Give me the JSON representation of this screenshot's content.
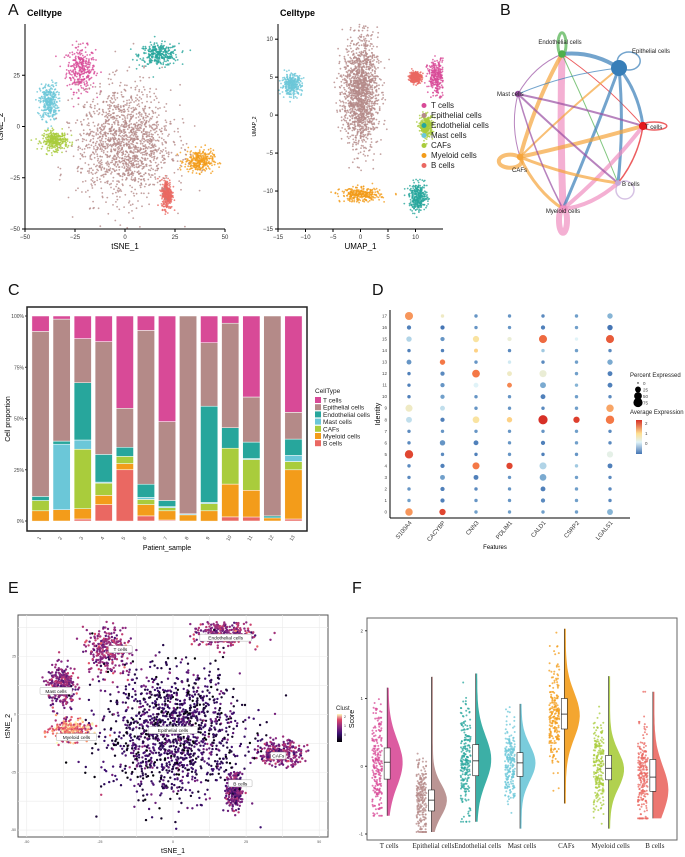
{
  "figure": {
    "panels": [
      "A",
      "B",
      "C",
      "D",
      "E",
      "F"
    ]
  },
  "celltypes": [
    "T cells",
    "Epithelial cells",
    "Endothelial cells",
    "Mast cells",
    "CAFs",
    "Myeloid cells",
    "B cells"
  ],
  "palette": {
    "T cells": "#d84a97",
    "Epithelial cells": "#b48a88",
    "Endothelial cells": "#27a69c",
    "Mast cells": "#6bc7d8",
    "CAFs": "#a9cc3c",
    "Myeloid cells": "#f39c1a",
    "B cells": "#ea6862"
  },
  "chart_data": [
    {
      "id": "A1",
      "type": "scatter",
      "title": "Celltype",
      "xlabel": "tSNE_1",
      "ylabel": "tSNE_2",
      "xlim": [
        -50,
        50
      ],
      "ylim": [
        -50,
        50
      ],
      "xticks": [
        "-50",
        "-25",
        "0",
        "25",
        "50"
      ],
      "yticks": [
        "-50",
        "-25",
        "0",
        "25"
      ],
      "clusters": [
        {
          "label": "T cells",
          "center": [
            -22,
            28
          ],
          "spread": [
            8,
            12
          ],
          "color": "#d84a97"
        },
        {
          "label": "Endothelial cells",
          "center": [
            17,
            35
          ],
          "spread": [
            11,
            6
          ],
          "color": "#27a69c"
        },
        {
          "label": "Mast cells",
          "center": [
            -38,
            12
          ],
          "spread": [
            5,
            10
          ],
          "color": "#6bc7d8"
        },
        {
          "label": "CAFs",
          "center": [
            -35,
            -7
          ],
          "spread": [
            7,
            5
          ],
          "color": "#a9cc3c"
        },
        {
          "label": "Myeloid cells",
          "center": [
            37,
            -17
          ],
          "spread": [
            8,
            6
          ],
          "color": "#f39c1a"
        },
        {
          "label": "B cells",
          "center": [
            21,
            -33
          ],
          "spread": [
            3,
            8
          ],
          "color": "#ea6862"
        },
        {
          "label": "Epithelial cells",
          "center": [
            0,
            -8
          ],
          "spread": [
            26,
            30
          ],
          "color": "#b48a88"
        }
      ]
    },
    {
      "id": "A2",
      "type": "scatter",
      "title": "Celltype",
      "xlabel": "UMAP_1",
      "ylabel": "UMAP_2",
      "xlim": [
        -15,
        15
      ],
      "ylim": [
        -15,
        12
      ],
      "xticks": [
        "-15",
        "-10",
        "-5",
        "0",
        "5",
        "10"
      ],
      "yticks": [
        "-15",
        "-10",
        "-5",
        "0",
        "5",
        "10"
      ],
      "legend": [
        "T cells",
        "Epithelial cells",
        "Endothelial cells",
        "Mast cells",
        "CAFs",
        "Myeloid cells",
        "B cells"
      ],
      "legend_position": "right",
      "clusters": [
        {
          "label": "T cells",
          "center": [
            14,
            5
          ],
          "spread": [
            2,
            2.5
          ],
          "color": "#d84a97"
        },
        {
          "label": "B cells",
          "center": [
            10,
            5
          ],
          "spread": [
            1.2,
            0.8
          ],
          "color": "#ea6862"
        },
        {
          "label": "Mast cells",
          "center": [
            -12.5,
            4
          ],
          "spread": [
            2,
            1.5
          ],
          "color": "#6bc7d8"
        },
        {
          "label": "CAFs",
          "center": [
            12,
            -1.5
          ],
          "spread": [
            1.3,
            1.5
          ],
          "color": "#a9cc3c"
        },
        {
          "label": "Myeloid cells",
          "center": [
            0,
            -10.5
          ],
          "spread": [
            4,
            1
          ],
          "color": "#f39c1a"
        },
        {
          "label": "Endothelial cells",
          "center": [
            10.5,
            -10.8
          ],
          "spread": [
            1.8,
            2
          ],
          "color": "#27a69c"
        },
        {
          "label": "Epithelial cells",
          "center": [
            0,
            3
          ],
          "spread": [
            3.5,
            8
          ],
          "color": "#b48a88"
        }
      ]
    },
    {
      "id": "B",
      "type": "network",
      "title": "",
      "nodes": [
        {
          "label": "Endothelial cells",
          "color": "#4daf4a",
          "weight": 0.3
        },
        {
          "label": "Epithelial cells",
          "color": "#377eb8",
          "weight": 1.0
        },
        {
          "label": "T cells",
          "color": "#e41a1c",
          "weight": 0.35
        },
        {
          "label": "B cells",
          "color": "#c5a8d8",
          "weight": 0.15
        },
        {
          "label": "Myeloid cells",
          "color": "#f08fc0",
          "weight": 0.3
        },
        {
          "label": "CAFs",
          "color": "#f5a43a",
          "weight": 0.2
        },
        {
          "label": "Mast cells",
          "color": "#984ea3",
          "weight": 0.2
        }
      ],
      "edges": [
        {
          "from": 0,
          "to": 1,
          "w": 4,
          "color": "#377eb8"
        },
        {
          "from": 0,
          "to": 4,
          "w": 7,
          "color": "#f08fc0"
        },
        {
          "from": 0,
          "to": 5,
          "w": 4,
          "color": "#f5a43a"
        },
        {
          "from": 0,
          "to": 2,
          "w": 1,
          "color": "#e41a1c"
        },
        {
          "from": 0,
          "to": 3,
          "w": 1,
          "color": "#4daf4a"
        },
        {
          "from": 0,
          "to": 6,
          "w": 1,
          "color": "#984ea3"
        },
        {
          "from": 1,
          "to": 2,
          "w": 3,
          "color": "#377eb8"
        },
        {
          "from": 1,
          "to": 3,
          "w": 3,
          "color": "#377eb8"
        },
        {
          "from": 1,
          "to": 4,
          "w": 3,
          "color": "#377eb8"
        },
        {
          "from": 1,
          "to": 5,
          "w": 2,
          "color": "#f5a43a"
        },
        {
          "from": 1,
          "to": 6,
          "w": 1,
          "color": "#377eb8"
        },
        {
          "from": 2,
          "to": 5,
          "w": 4,
          "color": "#f5a43a"
        },
        {
          "from": 2,
          "to": 4,
          "w": 4,
          "color": "#f08fc0"
        },
        {
          "from": 2,
          "to": 6,
          "w": 2,
          "color": "#984ea3"
        },
        {
          "from": 2,
          "to": 3,
          "w": 1.5,
          "color": "#e41a1c"
        },
        {
          "from": 3,
          "to": 5,
          "w": 3,
          "color": "#f5a43a"
        },
        {
          "from": 3,
          "to": 4,
          "w": 4,
          "color": "#f08fc0"
        },
        {
          "from": 3,
          "to": 6,
          "w": 2,
          "color": "#984ea3"
        },
        {
          "from": 4,
          "to": 5,
          "w": 3,
          "color": "#f5a43a"
        },
        {
          "from": 4,
          "to": 6,
          "w": 1.5,
          "color": "#984ea3"
        },
        {
          "from": 5,
          "to": 6,
          "w": 1,
          "color": "#984ea3"
        }
      ]
    },
    {
      "id": "C",
      "type": "bar",
      "stacked": true,
      "xlabel": "Patient_sample",
      "ylabel": "Cell proportion",
      "yticks": [
        "0%",
        "25%",
        "50%",
        "75%",
        "100%"
      ],
      "categories": [
        "1",
        "2",
        "3",
        "4",
        "5",
        "6",
        "7",
        "8",
        "9",
        "10",
        "11",
        "12",
        "13"
      ],
      "legend_title": "CellType",
      "legend_position": "right",
      "series": [
        {
          "name": "B cells",
          "values": [
            0,
            0,
            1,
            8,
            25,
            2.5,
            0.5,
            0,
            0,
            2,
            2,
            0,
            1
          ]
        },
        {
          "name": "Myeloid cells",
          "values": [
            5,
            5.5,
            5,
            4.5,
            3,
            5.5,
            4.5,
            3,
            5,
            16,
            13,
            1.5,
            24
          ]
        },
        {
          "name": "CAFs",
          "values": [
            5,
            0,
            29,
            6,
            3.5,
            2.5,
            1.5,
            0,
            3.5,
            17.5,
            15,
            0,
            4
          ]
        },
        {
          "name": "Mast cells",
          "values": [
            0,
            32,
            4.5,
            0.5,
            0,
            1,
            0.5,
            0.5,
            0.5,
            0,
            0.5,
            0,
            3
          ]
        },
        {
          "name": "Endothelial cells",
          "values": [
            2,
            1.5,
            28,
            13.5,
            4.5,
            6.5,
            3,
            0,
            47,
            10,
            8,
            1,
            8
          ]
        },
        {
          "name": "Epithelial cells",
          "values": [
            80.5,
            59.5,
            21.5,
            55,
            19,
            75,
            38.5,
            96.5,
            31,
            51,
            22,
            97.5,
            13
          ]
        },
        {
          "name": "T cells",
          "values": [
            7.5,
            1.5,
            11,
            12.5,
            45,
            7,
            51.5,
            0,
            13,
            3.5,
            39.5,
            0,
            47
          ]
        }
      ],
      "legend": [
        "T cells",
        "Epithelial cells",
        "Endothelial cells",
        "Mast cells",
        "CAFs",
        "Myeloid cells",
        "B cells"
      ]
    },
    {
      "id": "D",
      "type": "dotplot",
      "xlabel": "Features",
      "ylabel": "Identity",
      "features": [
        "S100A4",
        "CACYBP",
        "CNN3",
        "PDLIM1",
        "CALD1",
        "CSRP2",
        "LGALS1"
      ],
      "identities": [
        "0",
        "1",
        "2",
        "3",
        "4",
        "5",
        "6",
        "7",
        "8",
        "9",
        "10",
        "11",
        "12",
        "13",
        "14",
        "15",
        "16",
        "17"
      ],
      "size_legend_title": "Percent Expressed",
      "size_legend": [
        "0",
        "25",
        "50",
        "75"
      ],
      "color_legend_title": "Average Expression",
      "color_legend_ticks": [
        "2",
        "1",
        "0"
      ],
      "avg_expression": [
        [
          1.6,
          -0.3,
          -0.4,
          -0.5,
          -0.5,
          2.5,
          -0.5,
          -0.5,
          0.3,
          0.8,
          -0.6,
          -0.6,
          -0.6,
          -0.4,
          -0.6,
          0.2,
          -0.6,
          1.6
        ],
        [
          2.5,
          -0.6,
          -0.6,
          -0.3,
          -0.6,
          -0.5,
          -0.4,
          -0.4,
          -0.6,
          0.3,
          -0.3,
          -0.4,
          -0.5,
          1.8,
          -0.6,
          -0.4,
          -0.7,
          0.8
        ],
        [
          -0.3,
          -0.4,
          -0.5,
          -0.6,
          1.8,
          -0.6,
          -0.6,
          -0.4,
          1.0,
          -0.4,
          -0.4,
          0.5,
          1.8,
          -0.4,
          1.2,
          1.0,
          -0.4,
          -0.4
        ],
        [
          -0.3,
          -0.4,
          -0.4,
          -0.4,
          2.5,
          -0.4,
          -0.4,
          -0.4,
          1.2,
          -0.4,
          -0.4,
          1.7,
          0.8,
          0.4,
          -0.5,
          0.7,
          -0.4,
          -0.4
        ],
        [
          -0.3,
          -0.5,
          -0.6,
          -0.2,
          0.2,
          -0.6,
          -0.6,
          -0.4,
          2.8,
          -0.5,
          -0.6,
          -0.2,
          0.7,
          -0.5,
          0.1,
          2.0,
          -0.6,
          -0.5
        ],
        [
          -0.3,
          -0.3,
          -0.3,
          -0.3,
          0.1,
          -0.4,
          -0.3,
          -0.3,
          2.6,
          -0.3,
          -0.3,
          -0.1,
          -0.3,
          -0.3,
          -0.3,
          0.5,
          -0.3,
          -0.3
        ],
        [
          -0.1,
          -0.5,
          -0.5,
          -0.5,
          -0.6,
          0.6,
          -0.5,
          -0.5,
          1.8,
          1.5,
          -0.5,
          -0.6,
          -0.6,
          -0.2,
          -0.5,
          2.2,
          -0.7,
          -0.1
        ]
      ],
      "pct_expressed": [
        [
          45,
          5,
          5,
          5,
          5,
          60,
          5,
          5,
          25,
          40,
          5,
          5,
          5,
          15,
          5,
          20,
          10,
          55
        ],
        [
          30,
          10,
          10,
          15,
          10,
          5,
          20,
          5,
          10,
          15,
          10,
          10,
          10,
          20,
          5,
          10,
          10,
          5
        ],
        [
          5,
          5,
          5,
          15,
          40,
          5,
          15,
          5,
          35,
          5,
          5,
          15,
          50,
          5,
          8,
          30,
          5,
          5
        ],
        [
          5,
          5,
          5,
          5,
          30,
          5,
          5,
          5,
          20,
          5,
          5,
          15,
          15,
          5,
          5,
          10,
          5,
          5
        ],
        [
          5,
          10,
          15,
          35,
          40,
          5,
          10,
          5,
          75,
          5,
          15,
          25,
          40,
          5,
          5,
          55,
          10,
          5
        ],
        [
          5,
          5,
          5,
          5,
          5,
          5,
          5,
          5,
          30,
          5,
          5,
          5,
          5,
          5,
          5,
          5,
          5,
          5
        ],
        [
          25,
          5,
          5,
          5,
          15,
          30,
          5,
          5,
          60,
          45,
          5,
          15,
          15,
          20,
          5,
          55,
          20,
          20
        ]
      ]
    },
    {
      "id": "E",
      "type": "scatter",
      "xlabel": "tSNE_1",
      "ylabel": "tSNE_2",
      "xlim": [
        -50,
        50
      ],
      "ylim": [
        -50,
        40
      ],
      "xticks": [
        "-50",
        "-25",
        "0",
        "25",
        "50"
      ],
      "yticks": [
        "-50",
        "-25",
        "0",
        "25"
      ],
      "grid": true,
      "color_legend_title": "Clust",
      "color_legend_ticks": [
        "2",
        "1",
        "0"
      ],
      "labels": [
        {
          "text": "T cells",
          "x": -18,
          "y": 28,
          "score": 1.0
        },
        {
          "text": "Endothelial cells",
          "x": 18,
          "y": 33,
          "score": 1.0
        },
        {
          "text": "Mast cells",
          "x": -40,
          "y": 10,
          "score": 0.9
        },
        {
          "text": "Myeloid cells",
          "x": -33,
          "y": -10,
          "score": 0.9
        },
        {
          "text": "Epithelial cells",
          "x": 0,
          "y": -7,
          "score": 0.1
        },
        {
          "text": "CAFs",
          "x": 36,
          "y": -18,
          "score": 1.8
        },
        {
          "text": "B cells",
          "x": 23,
          "y": -30,
          "score": 0.7
        }
      ]
    },
    {
      "id": "F",
      "type": "violin",
      "ylabel": "Score",
      "ylim": [
        -1,
        2.1
      ],
      "yticks": [
        "-1",
        "0",
        "1",
        "2"
      ],
      "categories": [
        "T cells",
        "Epithelial cells",
        "Endothelial cells",
        "Mast cells",
        "CAFs",
        "Myeloid cells",
        "B cells"
      ],
      "colors": [
        "#d84a97",
        "#b48a88",
        "#27a69c",
        "#6bc7d8",
        "#f39c1a",
        "#a9cc3c",
        "#ea6862"
      ],
      "min": [
        -0.73,
        -0.97,
        -0.82,
        -0.92,
        -0.55,
        -0.92,
        -0.77
      ],
      "q1": [
        -0.19,
        -0.66,
        -0.14,
        -0.15,
        0.55,
        -0.2,
        -0.37
      ],
      "median": [
        0.06,
        -0.5,
        0.08,
        0.05,
        0.77,
        -0.03,
        -0.16
      ],
      "q3": [
        0.27,
        -0.35,
        0.32,
        0.2,
        1.0,
        0.16,
        0.1
      ],
      "max": [
        1.16,
        1.32,
        1.37,
        0.92,
        2.03,
        1.33,
        1.1
      ],
      "density_peak": [
        0.05,
        -0.5,
        0.1,
        0.05,
        0.75,
        -0.05,
        -0.35
      ]
    }
  ]
}
